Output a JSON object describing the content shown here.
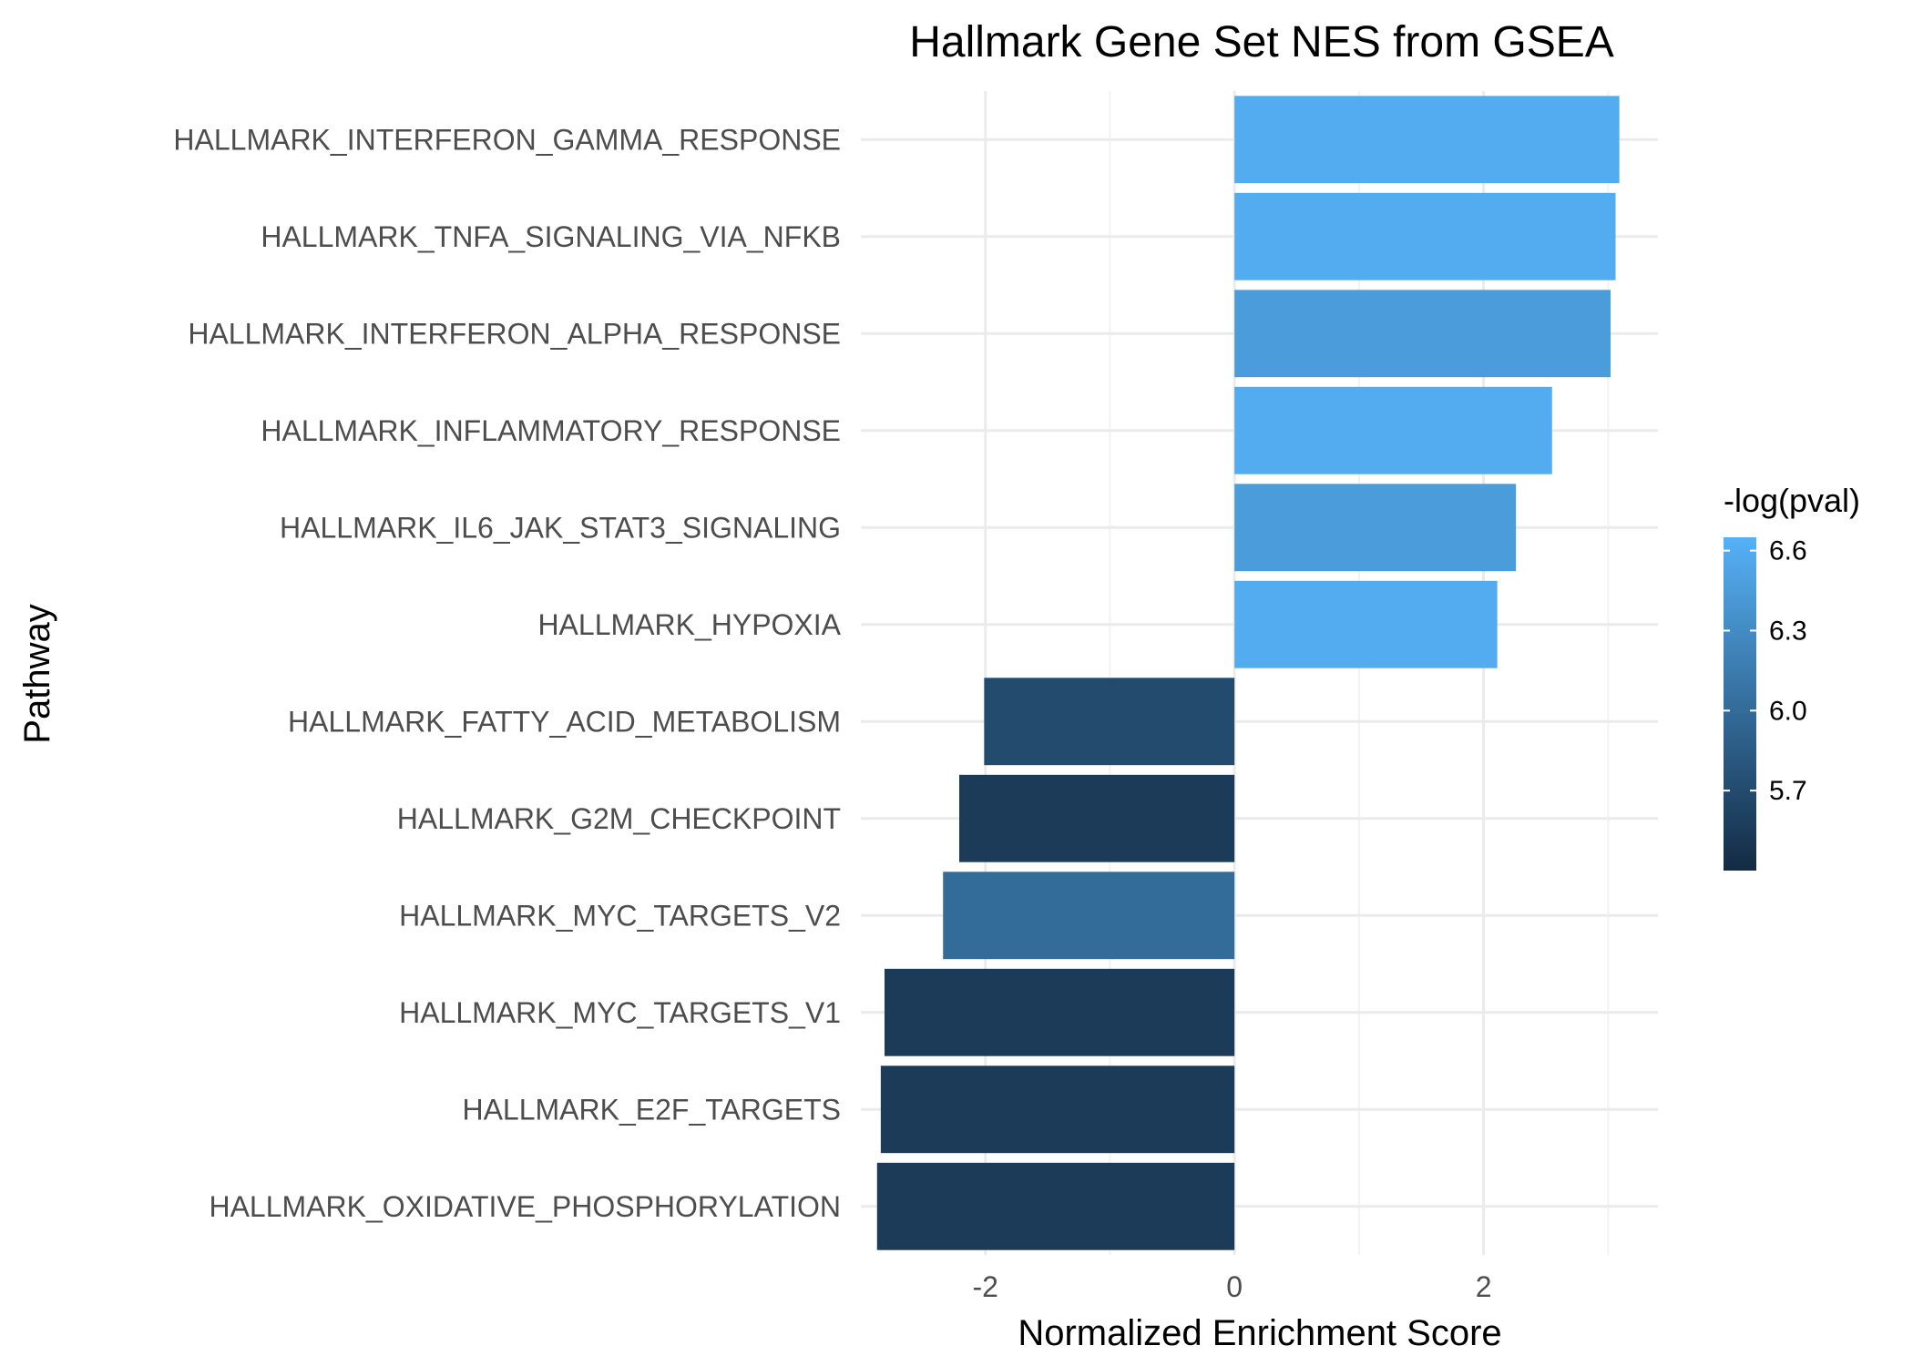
{
  "chart_data": {
    "type": "bar",
    "orientation": "horizontal",
    "title": "Hallmark Gene Set NES from GSEA",
    "xlabel": "Normalized Enrichment Score",
    "ylabel": "Pathway",
    "xlim": [
      -3.0,
      3.4
    ],
    "xticks": [
      -2,
      0,
      2
    ],
    "xtick_labels": [
      "-2",
      "0",
      "2"
    ],
    "grid": true,
    "legend_position": "right",
    "categories": [
      "HALLMARK_INTERFERON_GAMMA_RESPONSE",
      "HALLMARK_TNFA_SIGNALING_VIA_NFKB",
      "HALLMARK_INTERFERON_ALPHA_RESPONSE",
      "HALLMARK_INFLAMMATORY_RESPONSE",
      "HALLMARK_IL6_JAK_STAT3_SIGNALING",
      "HALLMARK_HYPOXIA",
      "HALLMARK_FATTY_ACID_METABOLISM",
      "HALLMARK_G2M_CHECKPOINT",
      "HALLMARK_MYC_TARGETS_V2",
      "HALLMARK_MYC_TARGETS_V1",
      "HALLMARK_E2F_TARGETS",
      "HALLMARK_OXIDATIVE_PHOSPHORYLATION"
    ],
    "values": [
      3.09,
      3.06,
      3.02,
      2.55,
      2.26,
      2.11,
      -2.01,
      -2.21,
      -2.34,
      -2.81,
      -2.84,
      -2.87
    ],
    "color_values": [
      6.6,
      6.6,
      6.45,
      6.6,
      6.45,
      6.6,
      5.7,
      5.55,
      6.0,
      5.55,
      5.55,
      5.55
    ],
    "colorbar": {
      "title": "-log(pval)",
      "range": [
        5.4,
        6.65
      ],
      "ticks": [
        6.6,
        6.3,
        6.0,
        5.7
      ],
      "tick_labels": [
        "6.6",
        "6.3",
        "6.0",
        "5.7"
      ],
      "color_low": "#132b43",
      "color_high": "#56b1f7"
    }
  }
}
